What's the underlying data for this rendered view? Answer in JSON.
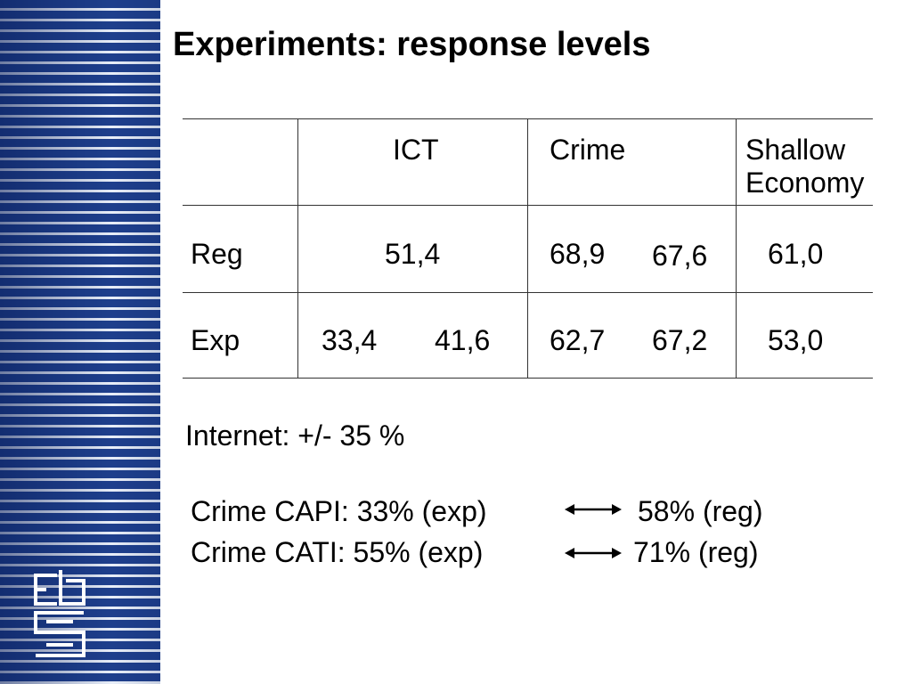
{
  "slide": {
    "title": "Experiments: response levels"
  },
  "table": {
    "headers": {
      "ict": "ICT",
      "crime": "Crime",
      "shallow_line1": "Shallow",
      "shallow_line2": "Economy"
    },
    "rows": [
      {
        "label": "Reg",
        "ict": [
          "51,4"
        ],
        "crime": [
          "68,9",
          "67,6"
        ],
        "shallow": "61,0"
      },
      {
        "label": "Exp",
        "ict": [
          "33,4",
          "41,6"
        ],
        "crime": [
          "62,7",
          "67,2"
        ],
        "shallow": "53,0"
      }
    ]
  },
  "notes": {
    "internet": "Internet: +/- 35 %",
    "capi_left": "Crime CAPI: 33% (exp)",
    "capi_right": "58% (reg)",
    "cati_left": "Crime CATI: 55% (exp)",
    "cati_right": "71% (reg)"
  },
  "colors": {
    "band": "#1e3f8c",
    "band_stripe": "#e8eef8"
  },
  "icons": {
    "arrow": "double-arrow-icon",
    "logo": "cbs-logo"
  }
}
